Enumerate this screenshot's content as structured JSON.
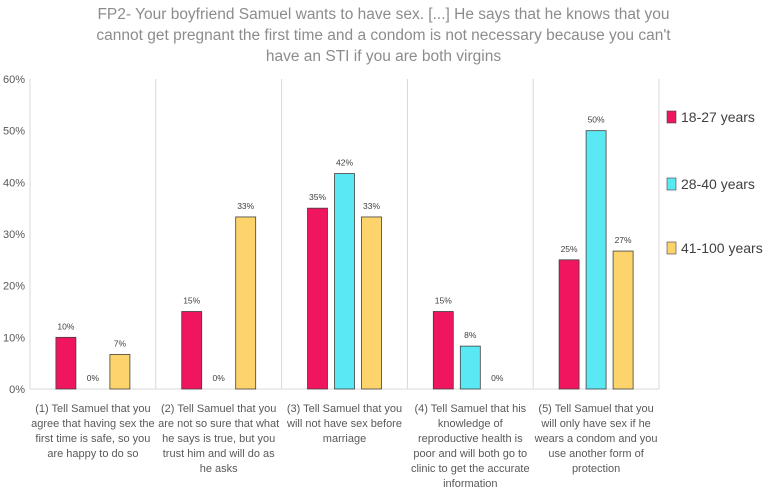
{
  "chart_data": {
    "type": "bar",
    "title_lines": [
      "FP2- Your boyfriend Samuel wants to have sex. [...] He says that he knows that you",
      "cannot get pregnant the first time and a condom is not necessary because you can't",
      "have an STI if you are both virgins"
    ],
    "categories": [
      [
        "(1) Tell Samuel that you",
        "agree that having sex the",
        "first time is safe, so you",
        "are happy to do so"
      ],
      [
        "(2) Tell Samuel that you",
        "are not so sure that what",
        "he says is true, but you",
        "trust him and will do as",
        "he asks"
      ],
      [
        "(3) Tell Samuel that you",
        "will not have sex before",
        "marriage"
      ],
      [
        "(4) Tell Samuel that his",
        "knowledge of",
        "reproductive health is",
        "poor and will both go to",
        "clinic to get the accurate",
        "information"
      ],
      [
        "(5) Tell Samuel that you",
        "will only have sex if he",
        "wears a condom and you",
        "use another form of",
        "protection"
      ]
    ],
    "series": [
      {
        "name": "18-27 years",
        "color": "#f0155f",
        "values": [
          10,
          15,
          35,
          15,
          25
        ],
        "labels": [
          "10%",
          "15%",
          "35%",
          "15%",
          "25%"
        ]
      },
      {
        "name": "28-40 years",
        "color": "#5ae8f4",
        "values": [
          0,
          0,
          41.7,
          8.3,
          50
        ],
        "labels": [
          "0%",
          "0%",
          "42%",
          "8%",
          "50%"
        ]
      },
      {
        "name": "41-100 years",
        "color": "#fdd46c",
        "values": [
          6.7,
          33.3,
          33.3,
          0,
          26.7
        ],
        "labels": [
          "7%",
          "33%",
          "33%",
          "0%",
          "27%"
        ]
      }
    ],
    "yticks": [
      "0%",
      "10%",
      "20%",
      "30%",
      "40%",
      "50%",
      "60%"
    ],
    "ylim": [
      0,
      60
    ],
    "ylabel": "",
    "xlabel": "",
    "legend_position": "right",
    "grid": false
  }
}
